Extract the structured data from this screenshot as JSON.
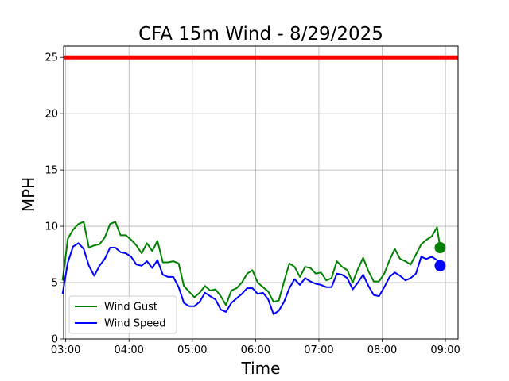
{
  "chart_data": {
    "type": "line",
    "title": "CFA 15m Wind - 8/29/2025",
    "xlabel": "Time",
    "ylabel": "MPH",
    "xlim": [
      "02:58",
      "09:12"
    ],
    "ylim": [
      0,
      26
    ],
    "x_ticks": [
      "03:00",
      "04:00",
      "05:00",
      "06:00",
      "07:00",
      "08:00",
      "09:00"
    ],
    "y_ticks": [
      0,
      5,
      10,
      15,
      20,
      25
    ],
    "grid": true,
    "legend_position": "lower-left",
    "threshold": {
      "value": 25,
      "color": "#ff0000"
    },
    "x": [
      "02:57",
      "03:02",
      "03:07",
      "03:12",
      "03:17",
      "03:22",
      "03:27",
      "03:32",
      "03:37",
      "03:42",
      "03:47",
      "03:52",
      "03:57",
      "04:02",
      "04:07",
      "04:12",
      "04:17",
      "04:22",
      "04:27",
      "04:32",
      "04:37",
      "04:42",
      "04:47",
      "04:52",
      "04:57",
      "05:02",
      "05:07",
      "05:12",
      "05:17",
      "05:22",
      "05:27",
      "05:32",
      "05:37",
      "05:42",
      "05:47",
      "05:52",
      "05:57",
      "06:02",
      "06:07",
      "06:12",
      "06:17",
      "06:22",
      "06:27",
      "06:32",
      "06:37",
      "06:42",
      "06:47",
      "06:52",
      "06:57",
      "07:02",
      "07:07",
      "07:12",
      "07:17",
      "07:22",
      "07:27",
      "07:32",
      "07:37",
      "07:42",
      "07:47",
      "07:52",
      "07:57",
      "08:02",
      "08:07",
      "08:12",
      "08:17",
      "08:22",
      "08:27",
      "08:32",
      "08:37",
      "08:42",
      "08:47",
      "08:52",
      "08:55"
    ],
    "series": [
      {
        "name": "Wind Gust",
        "color": "#008000",
        "values": [
          5.2,
          8.9,
          9.7,
          10.2,
          10.4,
          8.1,
          8.3,
          8.4,
          9.0,
          10.2,
          10.4,
          9.2,
          9.2,
          8.8,
          8.3,
          7.6,
          8.5,
          7.8,
          8.7,
          6.8,
          6.8,
          6.9,
          6.7,
          4.7,
          4.2,
          3.7,
          4.1,
          4.7,
          4.3,
          4.4,
          3.8,
          3.0,
          4.3,
          4.5,
          5.0,
          5.8,
          6.1,
          5.0,
          4.6,
          4.2,
          3.3,
          3.4,
          5.1,
          6.7,
          6.4,
          5.5,
          6.4,
          6.3,
          5.8,
          5.9,
          5.2,
          5.4,
          6.9,
          6.4,
          6.1,
          5.0,
          6.2,
          7.2,
          6.0,
          5.1,
          5.1,
          5.8,
          7.0,
          8.0,
          7.1,
          6.9,
          6.6,
          7.5,
          8.4,
          8.8,
          9.1,
          9.9,
          8.1
        ],
        "last_point": 8.1
      },
      {
        "name": "Wind Speed",
        "color": "#0000ff",
        "values": [
          4.0,
          6.8,
          8.2,
          8.5,
          8.0,
          6.5,
          5.6,
          6.5,
          7.1,
          8.1,
          8.1,
          7.7,
          7.6,
          7.3,
          6.6,
          6.5,
          6.9,
          6.3,
          7.0,
          5.7,
          5.5,
          5.5,
          4.6,
          3.2,
          2.9,
          2.9,
          3.3,
          4.1,
          3.8,
          3.5,
          2.6,
          2.4,
          3.2,
          3.6,
          4.0,
          4.5,
          4.5,
          4.0,
          4.1,
          3.5,
          2.2,
          2.5,
          3.3,
          4.5,
          5.3,
          4.8,
          5.4,
          5.1,
          4.9,
          4.8,
          4.6,
          4.6,
          5.8,
          5.7,
          5.4,
          4.4,
          5.0,
          5.7,
          4.7,
          3.9,
          3.8,
          4.6,
          5.5,
          5.9,
          5.6,
          5.2,
          5.4,
          5.8,
          7.3,
          7.1,
          7.3,
          7.0,
          6.5
        ],
        "last_point": 6.5
      }
    ]
  }
}
